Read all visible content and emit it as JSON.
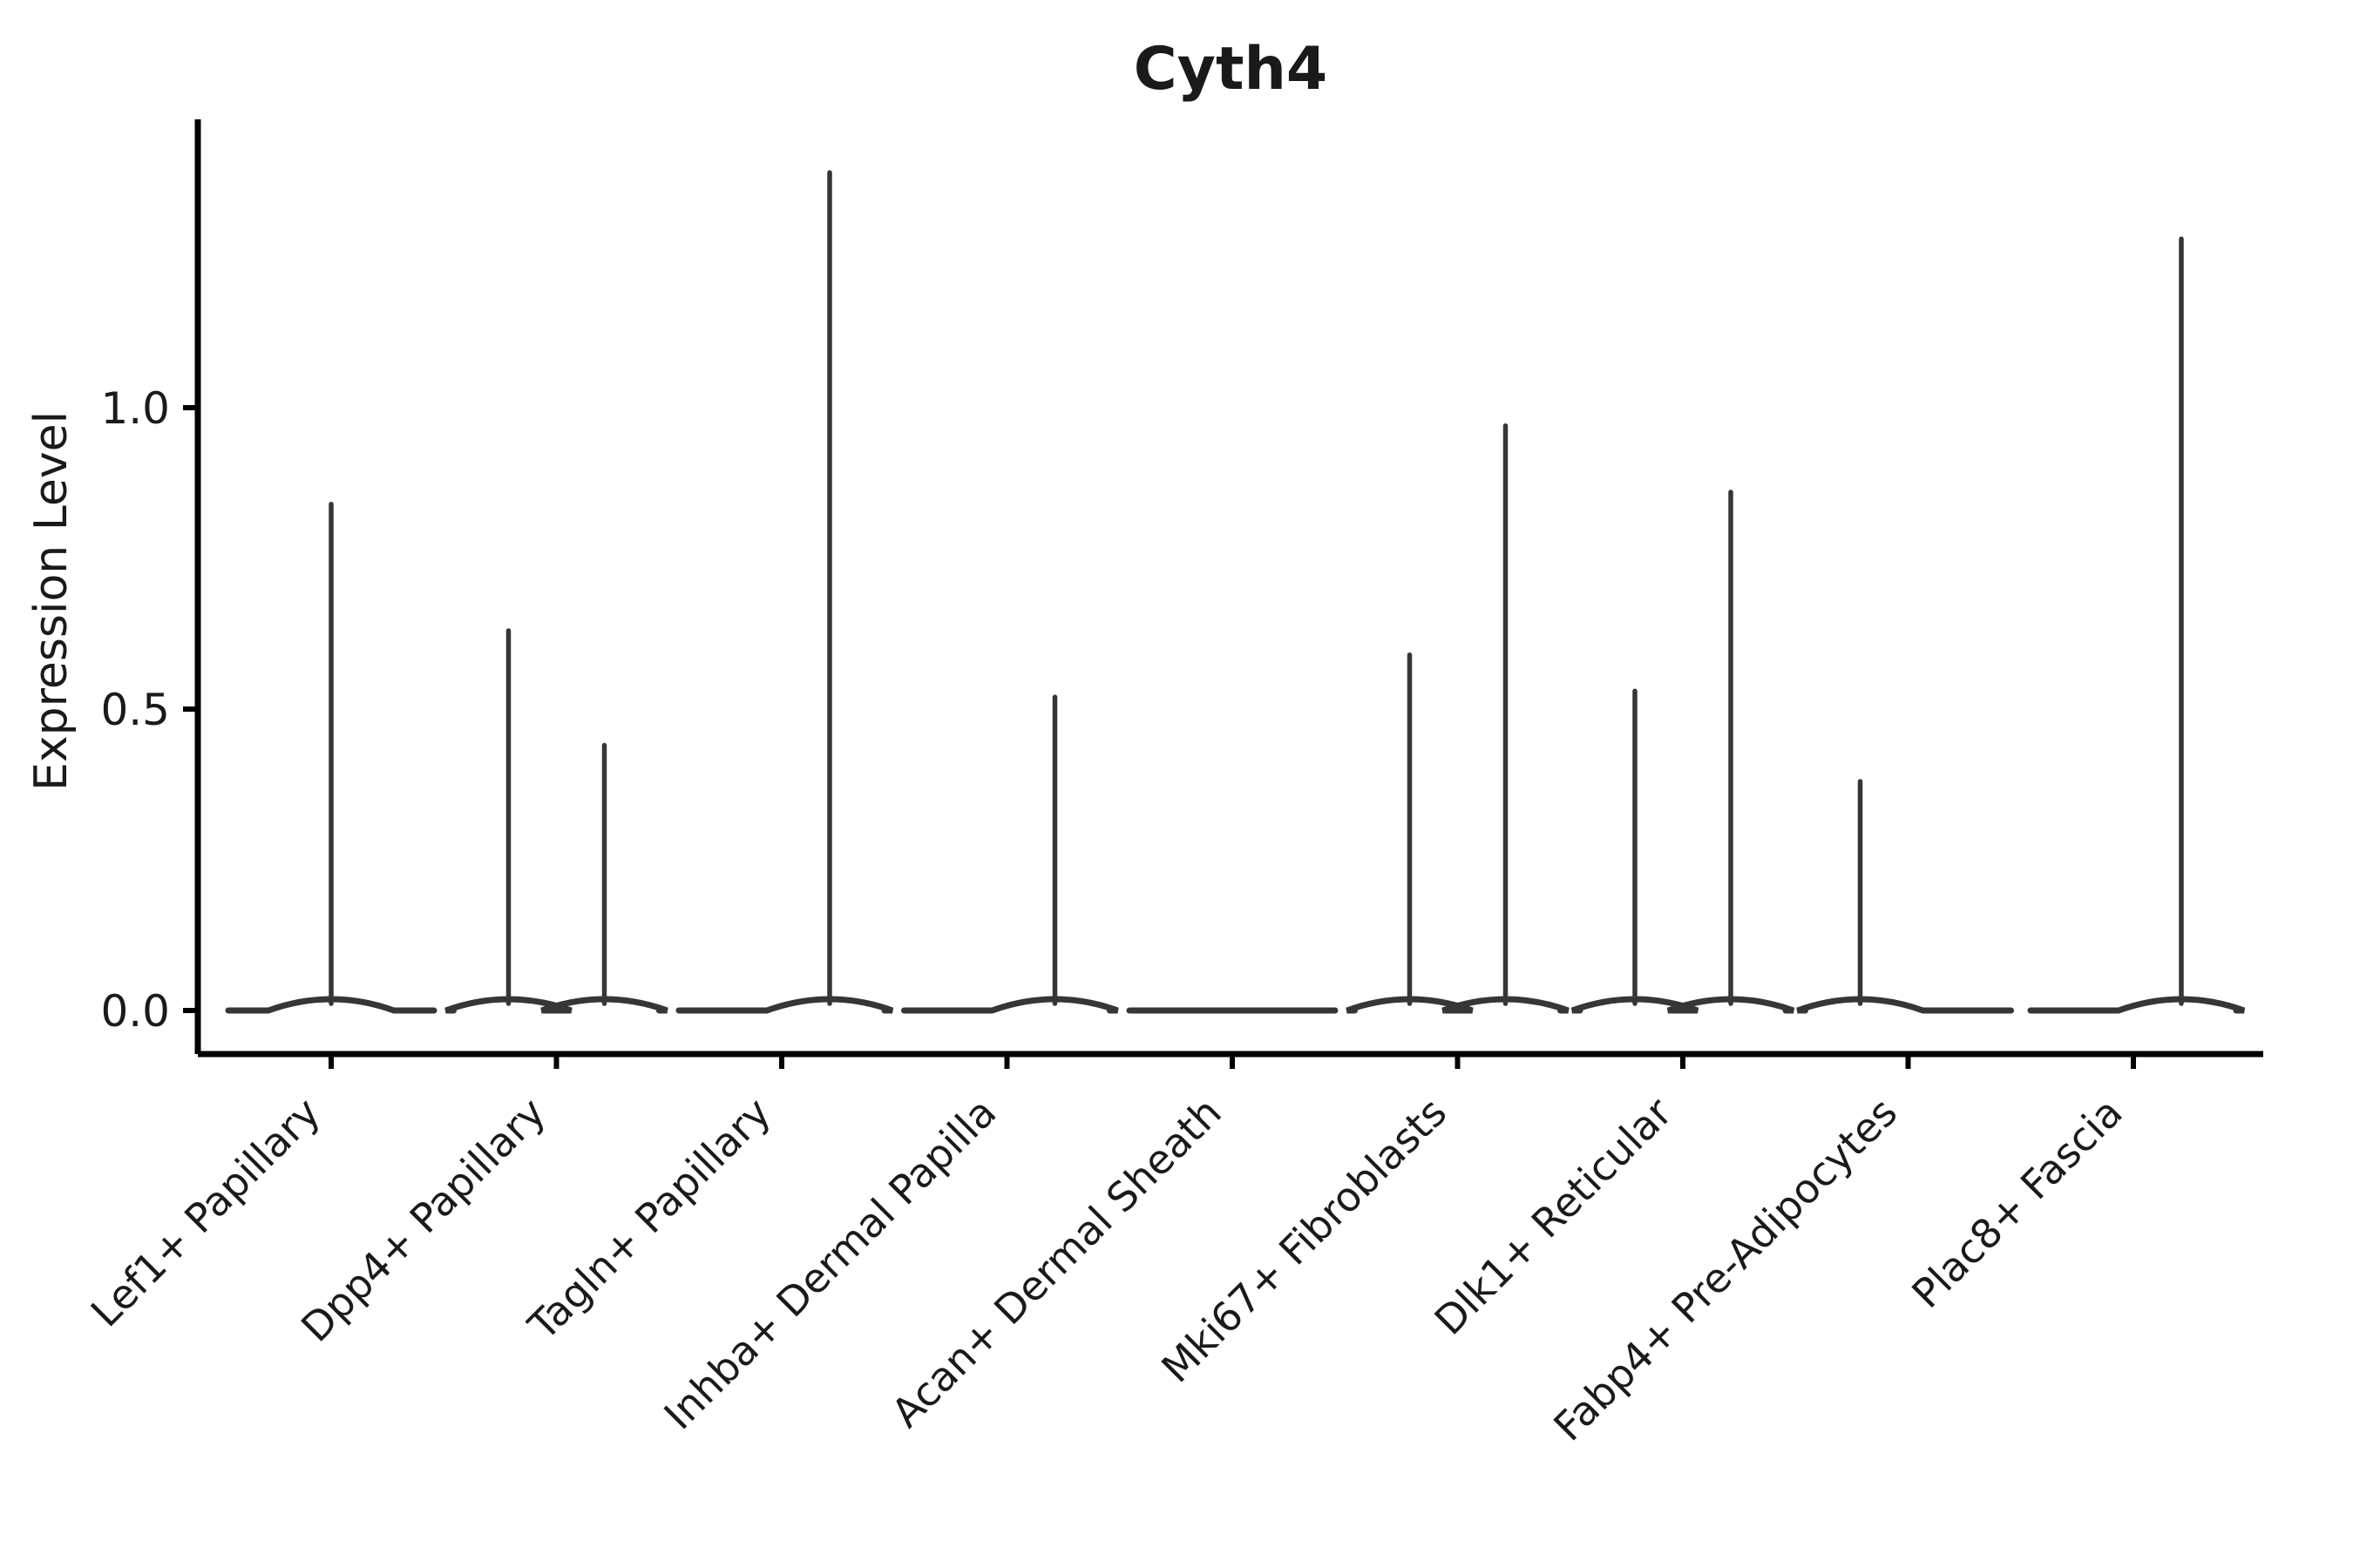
{
  "colors": {
    "background": "#ffffff",
    "violin_line": "#363636",
    "axis": "#000000",
    "text": "#1a1a1a"
  },
  "chart_data": {
    "type": "violin",
    "title": "Cyth4",
    "xlabel": "",
    "ylabel": "Expression Level",
    "grid": false,
    "legend": null,
    "ylim": [
      -0.07,
      1.48
    ],
    "yticks": [
      0.0,
      0.5,
      1.0
    ],
    "ytick_labels": [
      "0.0",
      "0.5",
      "1.0"
    ],
    "categories": [
      "Lef1+ Papillary",
      "Dpp4+ Papillary",
      "Tagln+ Papillary",
      "Inhba+ Dermal Papilla",
      "Acan+ Dermal Sheath",
      "Mki67+ Fibroblasts",
      "Dlk1+ Reticular",
      "Fabp4+ Pre-Adipocytes",
      "Plac8+ Fascia"
    ],
    "violins": [
      {
        "category": "Lef1+ Papillary",
        "spikes": [
          {
            "offset": "center",
            "max": 0.84
          }
        ]
      },
      {
        "category": "Dpp4+ Papillary",
        "spikes": [
          {
            "offset": "left",
            "max": 0.63
          },
          {
            "offset": "right",
            "max": 0.44
          }
        ]
      },
      {
        "category": "Tagln+ Papillary",
        "spikes": [
          {
            "offset": "right",
            "max": 1.39
          }
        ]
      },
      {
        "category": "Inhba+ Dermal Papilla",
        "spikes": [
          {
            "offset": "right",
            "max": 0.52
          }
        ]
      },
      {
        "category": "Acan+ Dermal Sheath",
        "spikes": []
      },
      {
        "category": "Mki67+ Fibroblasts",
        "spikes": [
          {
            "offset": "left",
            "max": 0.59
          },
          {
            "offset": "right",
            "max": 0.97
          }
        ]
      },
      {
        "category": "Dlk1+ Reticular",
        "spikes": [
          {
            "offset": "left",
            "max": 0.53
          },
          {
            "offset": "right",
            "max": 0.86
          }
        ]
      },
      {
        "category": "Fabp4+ Pre-Adipocytes",
        "spikes": [
          {
            "offset": "left",
            "max": 0.38
          }
        ]
      },
      {
        "category": "Plac8+ Fascia",
        "spikes": [
          {
            "offset": "right",
            "max": 1.28
          }
        ]
      }
    ]
  }
}
